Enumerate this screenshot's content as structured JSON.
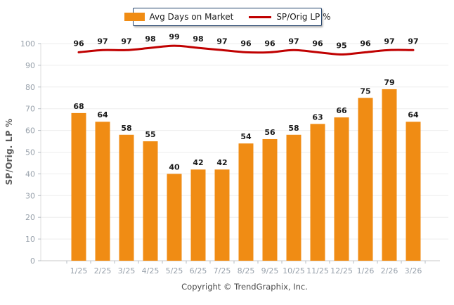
{
  "page": {
    "background": "#ffffff"
  },
  "legend": {
    "border_color": "#24436B",
    "items": [
      {
        "label": "Avg Days on Market",
        "swatch": "bar-swatch",
        "color": "#F08C14"
      },
      {
        "label": "SP/Orig LP %",
        "swatch": "line-swatch",
        "color": "#C00000"
      }
    ]
  },
  "chart_data": {
    "type": "bar",
    "title": "",
    "categories": [
      "1/25",
      "2/25",
      "3/25",
      "4/25",
      "5/25",
      "6/25",
      "7/25",
      "8/25",
      "9/25",
      "10/25",
      "11/25",
      "12/25",
      "1/26",
      "2/26",
      "3/26"
    ],
    "series": [
      {
        "name": "Avg Days on Market",
        "type": "bar",
        "color": "#F08C14",
        "values": [
          68,
          64,
          58,
          55,
          40,
          42,
          42,
          54,
          56,
          58,
          63,
          66,
          75,
          79,
          64
        ]
      },
      {
        "name": "SP/Orig LP %",
        "type": "line",
        "color": "#C00000",
        "values": [
          96,
          97,
          97,
          98,
          99,
          98,
          97,
          96,
          96,
          97,
          96,
          95,
          96,
          97,
          97
        ]
      }
    ],
    "xlabel": "",
    "ylabel": "SP/Orig. LP %",
    "ylim": [
      0,
      100
    ],
    "ytick_step": 10,
    "yticks": [
      "0",
      "10",
      "20",
      "30",
      "40",
      "50",
      "60",
      "70",
      "80",
      "90",
      "100"
    ],
    "grid": true,
    "data_labels": true,
    "legend_position": "top",
    "colors": {
      "grid_line": "#ededed",
      "axis_line": "#c9c9c9",
      "tick_mark": "#b5bcc4",
      "tick_label": "#98a1ab",
      "data_label": "#1a1a1a"
    }
  },
  "footer": {
    "text": "Copyright © TrendGraphix, Inc."
  }
}
